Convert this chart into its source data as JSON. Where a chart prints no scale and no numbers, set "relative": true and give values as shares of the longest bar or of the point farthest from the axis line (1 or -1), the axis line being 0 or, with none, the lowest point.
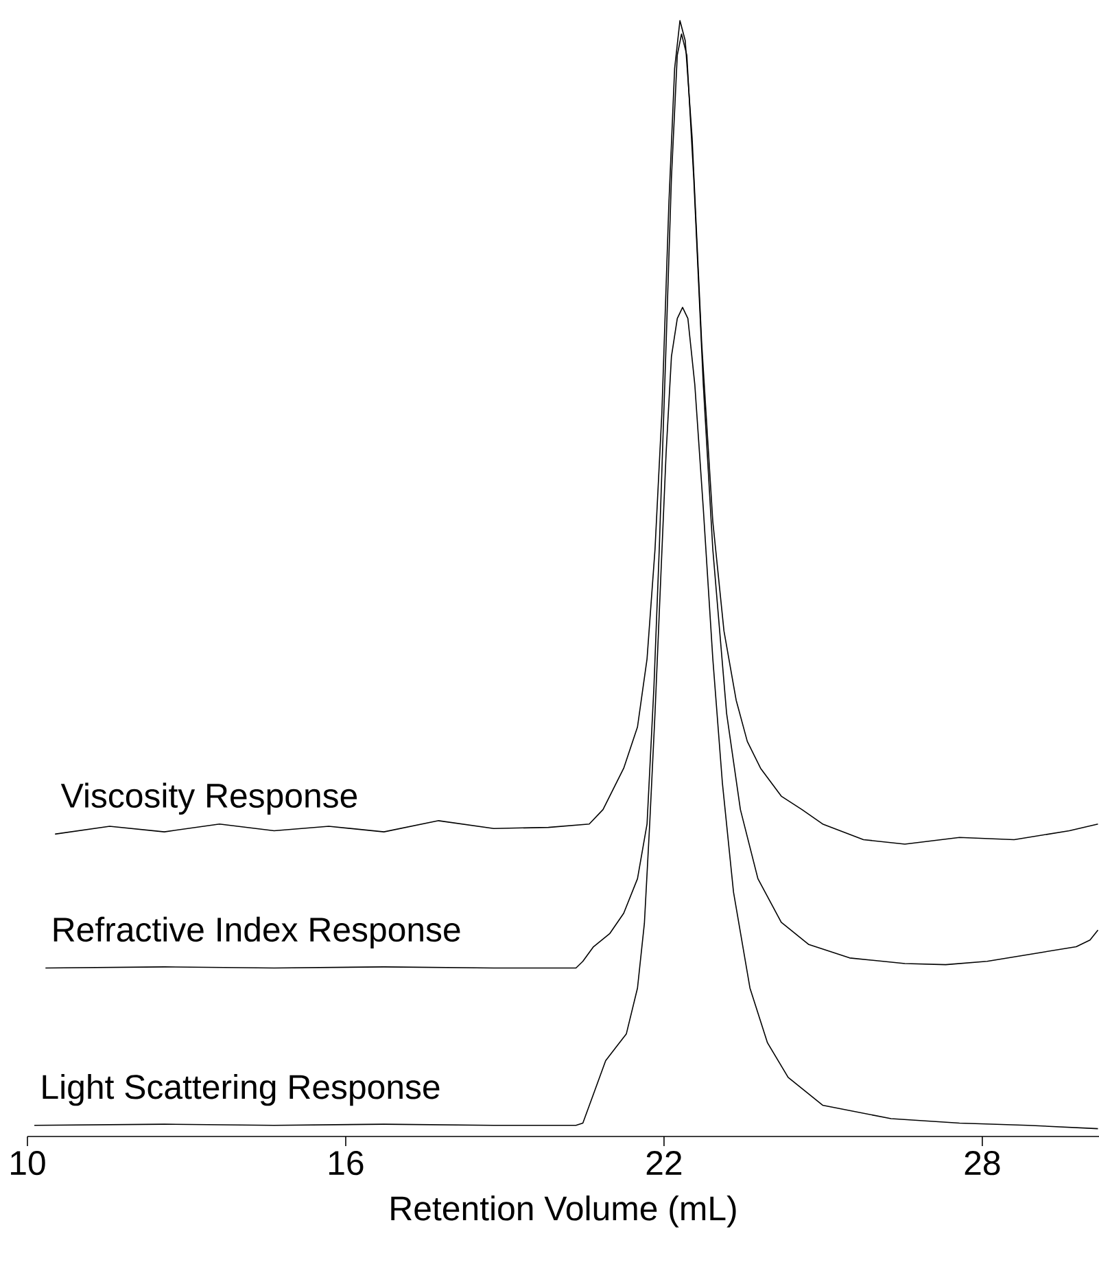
{
  "chart_data": {
    "type": "line",
    "xlabel": "Retention Volume  (mL)",
    "relative": true,
    "marker": "none",
    "line_style": "solid",
    "xlim": [
      10,
      30.2
    ],
    "xticks": [
      10,
      16,
      22,
      28
    ],
    "series": [
      {
        "name": "Viscosity Response",
        "color": "#000000",
        "x": [
          10.52,
          11.55,
          12.58,
          13.62,
          14.65,
          15.68,
          16.72,
          17.75,
          18.79,
          19.82,
          20.59,
          20.85,
          21.24,
          21.5,
          21.68,
          21.83,
          21.96,
          22.09,
          22.2,
          22.3,
          22.4,
          22.53,
          22.71,
          22.92,
          23.13,
          23.36,
          23.57,
          23.82,
          24.21,
          24.6,
          24.99,
          25.76,
          26.54,
          27.57,
          28.6,
          29.64,
          30.18
        ],
        "values": [
          0.271,
          0.278,
          0.273,
          0.28,
          0.274,
          0.278,
          0.273,
          0.283,
          0.276,
          0.277,
          0.28,
          0.293,
          0.33,
          0.367,
          0.428,
          0.526,
          0.649,
          0.834,
          0.957,
          1.0,
          0.982,
          0.895,
          0.711,
          0.551,
          0.453,
          0.391,
          0.354,
          0.33,
          0.305,
          0.293,
          0.28,
          0.266,
          0.262,
          0.268,
          0.266,
          0.274,
          0.28
        ]
      },
      {
        "name": "Refractive Index Response",
        "color": "#000000",
        "x": [
          10.34,
          12.58,
          14.65,
          16.72,
          18.79,
          20.34,
          20.47,
          20.67,
          20.98,
          21.24,
          21.5,
          21.68,
          21.81,
          21.91,
          22.04,
          22.14,
          22.25,
          22.33,
          22.43,
          22.56,
          22.74,
          22.92,
          23.18,
          23.44,
          23.77,
          24.21,
          24.73,
          25.5,
          26.54,
          27.31,
          28.09,
          29.12,
          29.77,
          30.03,
          30.18
        ],
        "values": [
          0.151,
          0.152,
          0.151,
          0.152,
          0.151,
          0.151,
          0.157,
          0.17,
          0.182,
          0.2,
          0.231,
          0.28,
          0.403,
          0.526,
          0.711,
          0.859,
          0.969,
          0.988,
          0.969,
          0.859,
          0.674,
          0.526,
          0.379,
          0.293,
          0.231,
          0.192,
          0.172,
          0.16,
          0.155,
          0.154,
          0.157,
          0.165,
          0.17,
          0.176,
          0.185
        ]
      },
      {
        "name": "Light Scattering Response",
        "color": "#000000",
        "x": [
          10.13,
          12.58,
          14.65,
          16.72,
          18.79,
          20.34,
          20.47,
          20.67,
          20.9,
          21.29,
          21.5,
          21.63,
          21.73,
          21.83,
          21.94,
          22.04,
          22.14,
          22.25,
          22.35,
          22.45,
          22.58,
          22.74,
          22.92,
          23.1,
          23.31,
          23.62,
          23.95,
          24.34,
          24.99,
          26.28,
          27.57,
          28.86,
          30.18
        ],
        "values": [
          0.01,
          0.011,
          0.01,
          0.011,
          0.01,
          0.01,
          0.012,
          0.038,
          0.068,
          0.092,
          0.133,
          0.191,
          0.28,
          0.379,
          0.502,
          0.613,
          0.699,
          0.733,
          0.743,
          0.733,
          0.674,
          0.563,
          0.428,
          0.317,
          0.219,
          0.133,
          0.084,
          0.053,
          0.028,
          0.016,
          0.012,
          0.01,
          0.007
        ]
      }
    ]
  }
}
